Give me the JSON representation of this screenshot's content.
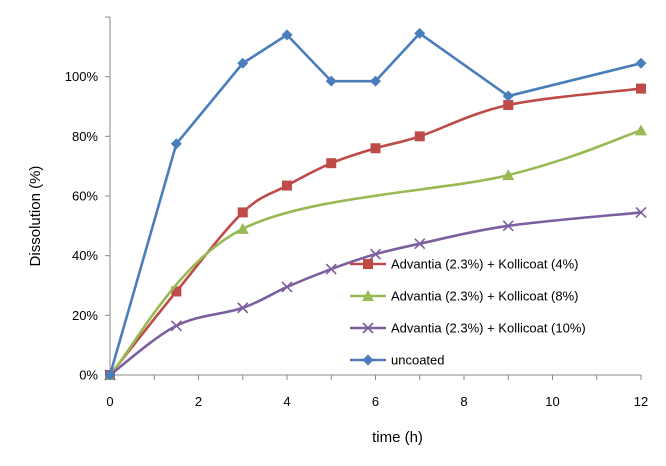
{
  "chart_data": {
    "type": "line",
    "xlabel": "time (h)",
    "ylabel": "Dissolution (%)",
    "xlim": [
      0,
      12
    ],
    "ylim": [
      0,
      1.2
    ],
    "x_ticks": [
      0,
      2,
      4,
      6,
      8,
      10,
      12
    ],
    "x_tick_labels": [
      "0",
      "2",
      "4",
      "6",
      "8",
      "10",
      "12"
    ],
    "y_ticks": [
      0,
      0.2,
      0.4,
      0.6,
      0.8,
      1.0
    ],
    "y_tick_labels": [
      "0%",
      "20%",
      "40%",
      "60%",
      "80%",
      "100%"
    ],
    "grid": false,
    "legend_position": "lower-right",
    "series": [
      {
        "name": "Advantia (2.3%) + Kollicoat (4%)",
        "color": "#BE4B48",
        "marker": "square",
        "smooth": true,
        "x": [
          0,
          1.5,
          3,
          4,
          5,
          6,
          7,
          9,
          12
        ],
        "y": [
          0,
          0.28,
          0.545,
          0.635,
          0.71,
          0.76,
          0.8,
          0.905,
          0.96
        ]
      },
      {
        "name": "Advantia (2.3%) + Kollicoat (8%)",
        "color": "#98B954",
        "marker": "triangle",
        "smooth": true,
        "x": [
          0,
          3,
          9,
          12
        ],
        "y": [
          0,
          0.49,
          0.67,
          0.82
        ]
      },
      {
        "name": "Advantia (2.3%) + Kollicoat (10%)",
        "color": "#7D5FA0",
        "marker": "x",
        "smooth": true,
        "x": [
          0,
          1.5,
          3,
          4,
          5,
          6,
          7,
          9,
          12
        ],
        "y": [
          0,
          0.165,
          0.225,
          0.295,
          0.355,
          0.405,
          0.44,
          0.5,
          0.545
        ]
      },
      {
        "name": "uncoated",
        "color": "#4A7EBB",
        "marker": "diamond",
        "smooth": false,
        "x": [
          0,
          1.5,
          3,
          4,
          5,
          6,
          7,
          9,
          12
        ],
        "y": [
          0,
          0.775,
          1.045,
          1.14,
          0.985,
          0.985,
          1.145,
          0.935,
          1.045
        ]
      }
    ]
  }
}
